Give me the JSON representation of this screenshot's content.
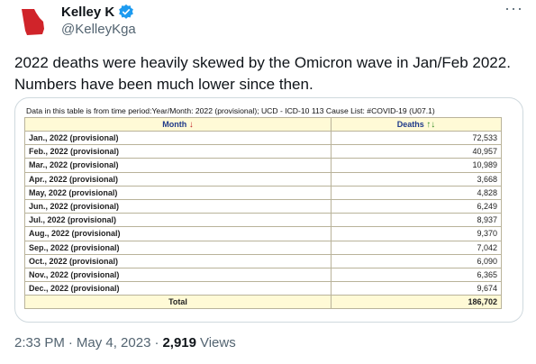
{
  "author": {
    "name": "Kelley K",
    "handle": "@KelleyKga"
  },
  "tweet": {
    "text_line1": "2022 deaths were heavily skewed by the Omicron wave in Jan/Feb 2022.",
    "text_line2": "Numbers have been much lower since then."
  },
  "table": {
    "note": "Data in this table is from time period:Year/Month: 2022 (provisional); UCD - ICD-10 113 Cause List: #COVID-19 (U07.1)",
    "col_month": "Month",
    "col_deaths": "Deaths",
    "rows": [
      {
        "month": "Jan., 2022 (provisional)",
        "deaths": "72,533"
      },
      {
        "month": "Feb., 2022 (provisional)",
        "deaths": "40,957"
      },
      {
        "month": "Mar., 2022 (provisional)",
        "deaths": "10,989"
      },
      {
        "month": "Apr., 2022 (provisional)",
        "deaths": "3,668"
      },
      {
        "month": "May, 2022 (provisional)",
        "deaths": "4,828"
      },
      {
        "month": "Jun., 2022 (provisional)",
        "deaths": "6,249"
      },
      {
        "month": "Jul., 2022 (provisional)",
        "deaths": "8,937"
      },
      {
        "month": "Aug., 2022 (provisional)",
        "deaths": "9,370"
      },
      {
        "month": "Sep., 2022 (provisional)",
        "deaths": "7,042"
      },
      {
        "month": "Oct., 2022 (provisional)",
        "deaths": "6,090"
      },
      {
        "month": "Nov., 2022 (provisional)",
        "deaths": "6,365"
      },
      {
        "month": "Dec., 2022 (provisional)",
        "deaths": "9,674"
      }
    ],
    "total_label": "Total",
    "total_value": "186,702"
  },
  "meta": {
    "time": "2:33 PM",
    "separator": "·",
    "date": "May 4, 2023",
    "separator2": "·",
    "views_count": "2,919",
    "views_label": "Views"
  },
  "icons": {
    "avatar": "georgia-state-map",
    "verified": "verified-badge-icon",
    "more": "more-options-icon",
    "sort_down": "sort-down-arrow-icon",
    "sort_updown": "sort-up-down-arrow-icon"
  },
  "colors": {
    "avatar_red": "#d0242a",
    "verified_blue": "#1d9bf0",
    "table_header_bg": "#fffad6",
    "table_header_text": "#1f3a8a",
    "muted_text": "#536471"
  }
}
